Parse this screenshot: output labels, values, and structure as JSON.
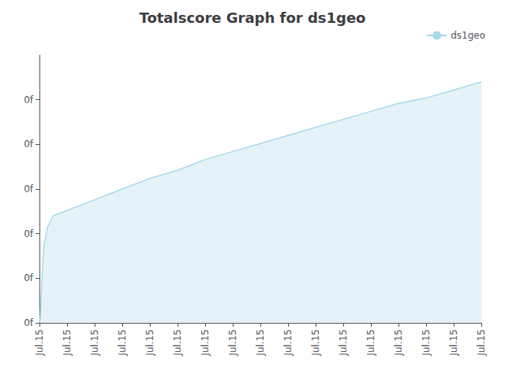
{
  "chart_data": {
    "type": "area",
    "title": "Totalscore Graph for ds1geo",
    "x": [
      0,
      0.03,
      0.06,
      0.1,
      0.15,
      0.3,
      0.5,
      1.0,
      2,
      3,
      4,
      5,
      6,
      7,
      8,
      9,
      10,
      11,
      12,
      13,
      14,
      15,
      16
    ],
    "series": [
      {
        "name": "ds1geo",
        "color": "#a8d8ea",
        "values": [
          0,
          0.02,
          0.08,
          0.18,
          0.28,
          0.36,
          0.4,
          0.42,
          0.46,
          0.5,
          0.54,
          0.57,
          0.61,
          0.64,
          0.67,
          0.7,
          0.73,
          0.76,
          0.79,
          0.82,
          0.84,
          0.87,
          0.9
        ]
      }
    ],
    "xlim": [
      0,
      16
    ],
    "xticks": [
      {
        "value": 0,
        "label": "Jul.15"
      },
      {
        "value": 1,
        "label": "Jul.15"
      },
      {
        "value": 2,
        "label": "Jul.15"
      },
      {
        "value": 3,
        "label": "Jul.15"
      },
      {
        "value": 4,
        "label": "Jul.15"
      },
      {
        "value": 5,
        "label": "Jul.15"
      },
      {
        "value": 6,
        "label": "Jul.15"
      },
      {
        "value": 7,
        "label": "Jul.15"
      },
      {
        "value": 8,
        "label": "Jul.15"
      },
      {
        "value": 9,
        "label": "Jul.15"
      },
      {
        "value": 10,
        "label": "Jul.15"
      },
      {
        "value": 11,
        "label": "Jul.15"
      },
      {
        "value": 12,
        "label": "Jul.15"
      },
      {
        "value": 13,
        "label": "Jul.15"
      },
      {
        "value": 14,
        "label": "Jul.15"
      },
      {
        "value": 15,
        "label": "Jul.15"
      },
      {
        "value": 16,
        "label": "Jul.15"
      }
    ],
    "ylim": [
      0.0,
      1.0
    ],
    "yticks": [
      {
        "value": 0.0,
        "label": "0f"
      },
      {
        "value": 0.16666666666666666,
        "label": "0f"
      },
      {
        "value": 0.3333333333333333,
        "label": "0f"
      },
      {
        "value": 0.5,
        "label": "0f"
      },
      {
        "value": 0.6666666666666666,
        "label": "0f"
      },
      {
        "value": 0.8333333333333333,
        "label": "0f"
      }
    ],
    "grid": false,
    "legend": "upper right"
  }
}
